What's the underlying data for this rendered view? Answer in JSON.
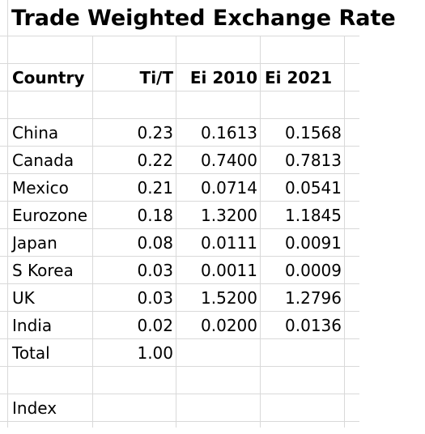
{
  "sheet": {
    "title": "Trade Weighted Exchange Rate",
    "headers": {
      "country": "Country",
      "weight": "Ti/T",
      "ei2010": "Ei 2010",
      "ei2021": "Ei 2021"
    },
    "rows": [
      {
        "country": "China",
        "weight": "0.23",
        "ei2010": "0.1613",
        "ei2021": "0.1568"
      },
      {
        "country": "Canada",
        "weight": "0.22",
        "ei2010": "0.7400",
        "ei2021": "0.7813"
      },
      {
        "country": "Mexico",
        "weight": "0.21",
        "ei2010": "0.0714",
        "ei2021": "0.0541"
      },
      {
        "country": "Eurozone",
        "weight": "0.18",
        "ei2010": "1.3200",
        "ei2021": "1.1845"
      },
      {
        "country": "Japan",
        "weight": "0.08",
        "ei2010": "0.0111",
        "ei2021": "0.0091"
      },
      {
        "country": "S Korea",
        "weight": "0.03",
        "ei2010": "0.0011",
        "ei2021": "0.0009"
      },
      {
        "country": "UK",
        "weight": "0.03",
        "ei2010": "1.5200",
        "ei2021": "1.2796"
      },
      {
        "country": "India",
        "weight": "0.02",
        "ei2010": "0.0200",
        "ei2021": "0.0136"
      }
    ],
    "total": {
      "label": "Total",
      "weight": "1.00"
    },
    "index_label": "Index"
  }
}
